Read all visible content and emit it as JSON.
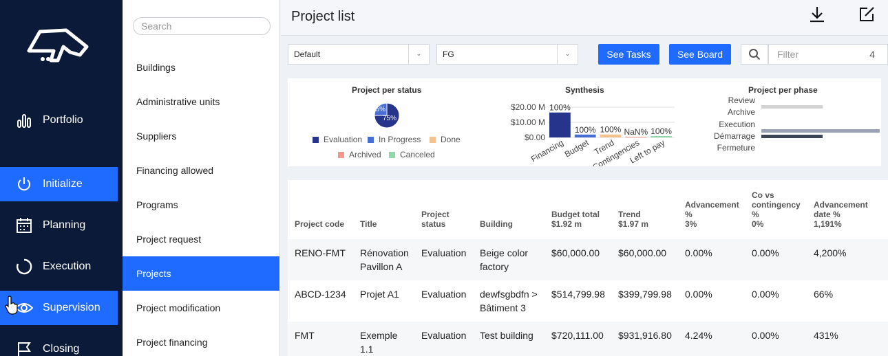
{
  "nav": {
    "items": [
      {
        "label": "Portfolio",
        "icon": "bar-chart-icon"
      },
      {
        "label": "Initialize",
        "icon": "power-icon"
      },
      {
        "label": "Planning",
        "icon": "calendar-icon"
      },
      {
        "label": "Execution",
        "icon": "progress-ring-icon"
      },
      {
        "label": "Supervision",
        "icon": "eye-icon"
      },
      {
        "label": "Closing",
        "icon": "flag-icon"
      }
    ],
    "active_colors": {
      "accent": "#1f6bff",
      "background": "#0c1a3a"
    }
  },
  "submenu": {
    "search_placeholder": "Search",
    "items": [
      "Buildings",
      "Administrative units",
      "Suppliers",
      "Financing allowed",
      "Programs",
      "Project request",
      "Projects",
      "Project modification",
      "Project financing"
    ],
    "active": "Projects"
  },
  "header": {
    "title": "Project list",
    "icons": [
      "download-icon",
      "edit-icon"
    ]
  },
  "toolbar": {
    "view_select": "Default",
    "filter_select": "FG",
    "see_tasks": "See Tasks",
    "see_board": "See Board",
    "filter_placeholder": "Filter",
    "filter_count": "4"
  },
  "charts": {
    "status": {
      "title": "Project per status",
      "slice_labels": [
        "25%",
        "75%"
      ],
      "legend": [
        {
          "label": "Evaluation",
          "color": "#26348b"
        },
        {
          "label": "In Progress",
          "color": "#4a6fd4"
        },
        {
          "label": "Done",
          "color": "#f2c38f"
        },
        {
          "label": "Archived",
          "color": "#f2998b"
        },
        {
          "label": "Canceled",
          "color": "#8fd9a8"
        }
      ]
    },
    "synthesis": {
      "title": "Synthesis",
      "y_ticks": [
        "$20.00 M",
        "$10.00 M",
        "$0.00"
      ],
      "categories": [
        "Financing",
        "Budget",
        "Trend",
        "Contingencies",
        "Left to pay"
      ],
      "percent_labels": [
        "100%",
        "100%",
        "100%",
        "NaN%",
        "100%"
      ]
    },
    "phase": {
      "title": "Project per phase",
      "phases": [
        "Review",
        "Archive",
        "Execution",
        "Démarrage",
        "Fermeture"
      ]
    }
  },
  "chart_data": [
    {
      "type": "pie",
      "title": "Project per status",
      "slices": [
        {
          "label": "Evaluation",
          "value": 75
        },
        {
          "label": "In Progress",
          "value": 25
        },
        {
          "label": "Done",
          "value": 0
        },
        {
          "label": "Archived",
          "value": 0
        },
        {
          "label": "Canceled",
          "value": 0
        }
      ]
    },
    {
      "type": "bar",
      "title": "Synthesis",
      "categories": [
        "Financing",
        "Budget",
        "Trend",
        "Contingencies",
        "Left to pay"
      ],
      "values": [
        16.5,
        1.92,
        1.97,
        0,
        0.3
      ],
      "ylim": [
        0,
        20
      ],
      "colors": [
        "#26348b",
        "#4a6fd4",
        "#f2c38f",
        "#f2998b",
        "#8fd9a8"
      ]
    },
    {
      "type": "bar",
      "title": "Project per phase",
      "orientation": "horizontal",
      "categories": [
        "Review",
        "Archive",
        "Execution",
        "Démarrage",
        "Fermeture"
      ],
      "values": [
        0,
        2,
        0,
        4,
        2
      ]
    }
  ],
  "table": {
    "columns": [
      {
        "lines": [
          "Project code"
        ]
      },
      {
        "lines": [
          "Title"
        ]
      },
      {
        "lines": [
          "Project",
          "status"
        ]
      },
      {
        "lines": [
          "Building"
        ]
      },
      {
        "lines": [
          "Budget total",
          "$1.92 m"
        ]
      },
      {
        "lines": [
          "Trend",
          "$1.97 m"
        ]
      },
      {
        "lines": [
          "Advancement",
          "%",
          "3%"
        ]
      },
      {
        "lines": [
          "Co vs",
          "contingency",
          "%",
          "0%"
        ]
      },
      {
        "lines": [
          "Advancement",
          "date %",
          "1,191%"
        ]
      }
    ],
    "rows": [
      [
        "RENO-FMT",
        "Rénovation Pavillon A",
        "Evaluation",
        "Beige color factory",
        "$60,000.00",
        "$60,000.00",
        "0.00%",
        "0.00%",
        "4,200%"
      ],
      [
        "ABCD-1234",
        "Projet A1",
        "Evaluation",
        "dewfsgbdfn > Bâtiment 3",
        "$514,799.98",
        "$399,799.98",
        "0.00%",
        "0.00%",
        "66%"
      ],
      [
        "FMT",
        "Exemple 1.1",
        "Evaluation",
        "Test building",
        "$720,111.00",
        "$931,916.80",
        "4.24%",
        "0.00%",
        "431%"
      ]
    ]
  }
}
